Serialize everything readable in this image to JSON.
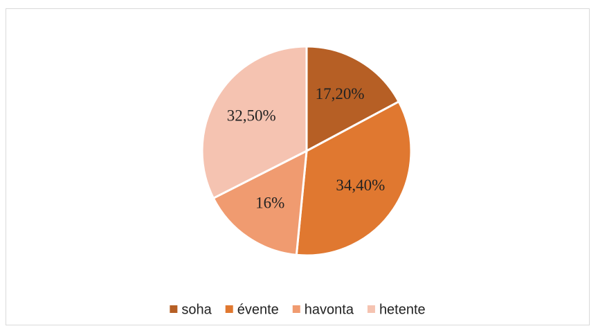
{
  "chart_data": {
    "type": "pie",
    "categories": [
      "soha",
      "évente",
      "havonta",
      "hetente"
    ],
    "values": [
      17.2,
      34.4,
      16,
      32.5
    ],
    "value_labels": [
      "17,20%",
      "34,40%",
      "16%",
      "32,50%"
    ],
    "colors": [
      "#b65f25",
      "#e07830",
      "#f09b70",
      "#f5c3b1"
    ],
    "legend": "bottom"
  }
}
